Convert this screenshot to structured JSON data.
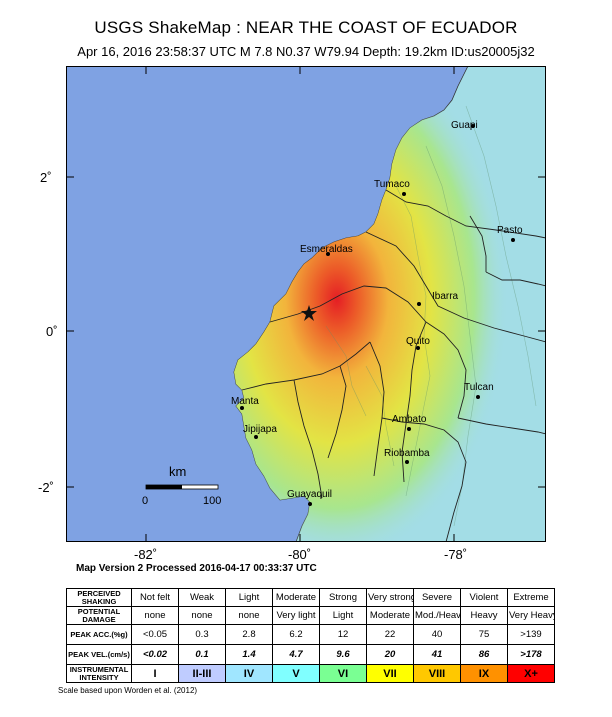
{
  "header": {
    "title": "USGS ShakeMap : NEAR THE COAST OF ECUADOR",
    "subtitle": "Apr 16, 2016 23:58:37 UTC   M 7.8   N0.37 W79.94   Depth: 19.2km   ID:us20005j32"
  },
  "map": {
    "lat_labels": [
      "2˚",
      "0˚",
      "-2˚"
    ],
    "lon_labels": [
      "-82˚",
      "-80˚",
      "-78˚"
    ],
    "cities": [
      {
        "name": "Guapi"
      },
      {
        "name": "Tumaco"
      },
      {
        "name": "Pasto"
      },
      {
        "name": "Esmeraldas"
      },
      {
        "name": "Ibarra"
      },
      {
        "name": "Quito"
      },
      {
        "name": "Tulcan"
      },
      {
        "name": "Manta"
      },
      {
        "name": "Jipijapa"
      },
      {
        "name": "Ambato"
      },
      {
        "name": "Riobamba"
      },
      {
        "name": "Guayaquil"
      }
    ],
    "scale": {
      "unit": "km",
      "start": "0",
      "end": "100"
    },
    "colors": {
      "ocean": "#7fa2e3",
      "land_low": "#9fdde6",
      "land_mid": "#f0dc3c",
      "land_high": "#ee3a1c"
    }
  },
  "version_text": "Map Version 2 Processed 2016-04-17 00:33:37 UTC",
  "legend": {
    "shaking_label": "PERCEIVED SHAKING",
    "shaking": [
      "Not felt",
      "Weak",
      "Light",
      "Moderate",
      "Strong",
      "Very strong",
      "Severe",
      "Violent",
      "Extreme"
    ],
    "damage_label": "POTENTIAL DAMAGE",
    "damage": [
      "none",
      "none",
      "none",
      "Very light",
      "Light",
      "Moderate",
      "Mod./Heavy",
      "Heavy",
      "Very Heavy"
    ],
    "acc_label": "PEAK ACC.(%g)",
    "acc": [
      "<0.05",
      "0.3",
      "2.8",
      "6.2",
      "12",
      "22",
      "40",
      "75",
      ">139"
    ],
    "vel_label": "PEAK VEL.(cm/s)",
    "vel": [
      "<0.02",
      "0.1",
      "1.4",
      "4.7",
      "9.6",
      "20",
      "41",
      "86",
      ">178"
    ],
    "intensity_label": "INSTRUMENTAL INTENSITY",
    "intensity": [
      "I",
      "II-III",
      "IV",
      "V",
      "VI",
      "VII",
      "VIII",
      "IX",
      "X+"
    ],
    "intensity_colors": [
      "#ffffff",
      "#bfccff",
      "#a0e6ff",
      "#80ffff",
      "#7aff93",
      "#ffff00",
      "#ffc800",
      "#ff9100",
      "#ff0000"
    ]
  },
  "scale_note": "Scale based upon Worden et al. (2012)"
}
